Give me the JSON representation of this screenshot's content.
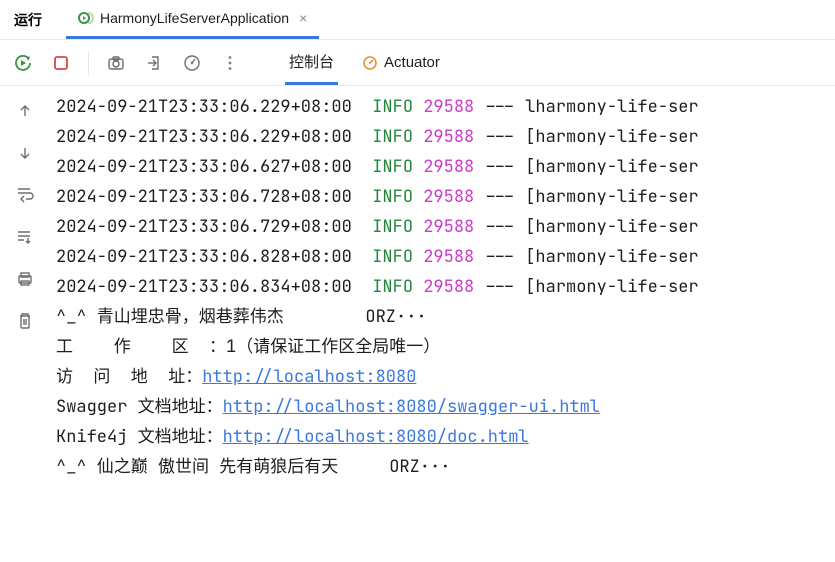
{
  "header": {
    "run_label": "运行",
    "app_tab": "HarmonyLifeServerApplication",
    "close_glyph": "×"
  },
  "subtabs": {
    "console": "控制台",
    "actuator": "Actuator"
  },
  "colors": {
    "active_border": "#3b78de",
    "info": "#22863a",
    "pid": "#cc3ac9",
    "link": "#3b78de",
    "text": "#1e1e1e",
    "rerun_green": "#3d9444",
    "stop_red": "#de444c",
    "actuator_orange": "#e69138"
  },
  "log": {
    "pid": "29588",
    "level": "INFO",
    "dash": " --- ",
    "thread": "[harmony-life-ser",
    "thread_alt": "lharmony-life-ser",
    "timestamps": [
      "2024-09-21T23:33:06.229+08:00",
      "2024-09-21T23:33:06.229+08:00",
      "2024-09-21T23:33:06.627+08:00",
      "2024-09-21T23:33:06.728+08:00",
      "2024-09-21T23:33:06.729+08:00",
      "2024-09-21T23:33:06.828+08:00",
      "2024-09-21T23:33:06.834+08:00"
    ],
    "footer": {
      "line1_left": "^_^ 青山埋忠骨，烟巷葬伟杰",
      "line1_right": "ORZ···",
      "line2_label": "工    作    区  ：",
      "line2_value": "1",
      "line2_suffix": "（请保证工作区全局唯一）",
      "line3_label": "访  问  地  址：",
      "line3_url": "http://localhost:8080",
      "line4_label": "Swagger 文档地址：",
      "line4_url": "http://localhost:8080/swagger-ui.html",
      "line5_label": "Knife4j 文档地址：",
      "line5_url": "http://localhost:8080/doc.html",
      "line6_left": "^_^ 仙之巅 傲世间 先有萌狼后有天",
      "line6_right": "ORZ···"
    }
  }
}
